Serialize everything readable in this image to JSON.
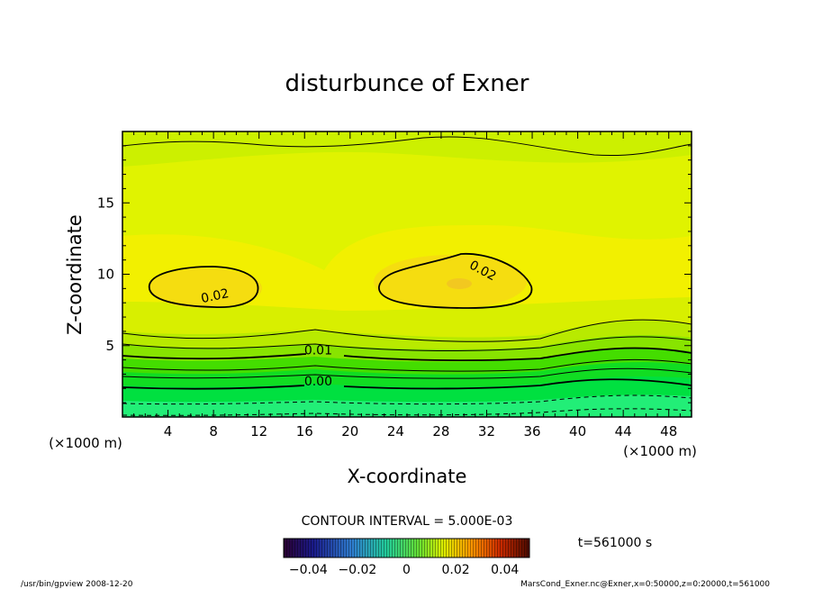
{
  "chart_data": {
    "type": "heatmap",
    "title": "disturbunce of Exner",
    "xlabel": "X-coordinate",
    "ylabel": "Z-coordinate",
    "x_unit": "(×1000 m)",
    "y_unit": "(×1000 m)",
    "xlim": [
      0,
      50
    ],
    "ylim": [
      0,
      20
    ],
    "x_ticks": [
      4,
      8,
      12,
      16,
      20,
      24,
      28,
      32,
      36,
      40,
      44,
      48
    ],
    "y_ticks": [
      5,
      10,
      15
    ],
    "contour_interval_text": "CONTOUR INTERVAL = 5.000E-03",
    "time_text": "t=561000 s",
    "colorbar": {
      "range": [
        -0.05,
        0.05
      ],
      "tick_values": [
        -0.04,
        -0.02,
        0,
        0.02,
        0.04
      ],
      "tick_labels": [
        "−0.04",
        "−0.02",
        "0",
        "0.02",
        "0.04"
      ]
    },
    "contour_labels": [
      {
        "text": "0.02",
        "x": 8.2,
        "z": 8.2
      },
      {
        "text": "0.02",
        "x": 31.5,
        "z": 10.0
      },
      {
        "text": "0.01",
        "x": 17.2,
        "z": 4.4
      },
      {
        "text": "0.00",
        "x": 17.2,
        "z": 2.2
      }
    ],
    "maxima": [
      {
        "x": 6.5,
        "z": 9.3,
        "value": 0.021
      },
      {
        "x": 29.5,
        "z": 9.3,
        "value": 0.022
      }
    ],
    "legend_placement": "bottom-center"
  },
  "footer": {
    "left": "/usr/bin/gpview   2008-12-20",
    "right": "MarsCond_Exner.nc@Exner,x=0:50000,z=0:20000,t=561000"
  }
}
